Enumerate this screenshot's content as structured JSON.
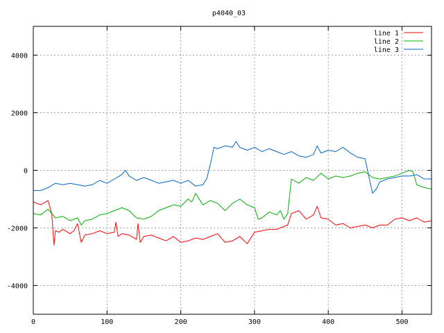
{
  "chart_data": {
    "type": "line",
    "title": "p4040_03",
    "xlabel": "",
    "ylabel": "",
    "xlim": [
      0,
      540
    ],
    "ylim": [
      -5000,
      5000
    ],
    "xticks": [
      0,
      100,
      200,
      300,
      400,
      500
    ],
    "yticks": [
      -4000,
      -2000,
      0,
      2000,
      4000
    ],
    "grid": true,
    "legend_position": "top-right",
    "series": [
      {
        "name": "line 1",
        "color": "#ff0000",
        "x": [
          0,
          10,
          20,
          25,
          28,
          30,
          35,
          40,
          50,
          55,
          60,
          65,
          70,
          80,
          90,
          100,
          110,
          112,
          115,
          120,
          130,
          140,
          142,
          145,
          150,
          160,
          170,
          180,
          190,
          200,
          210,
          220,
          230,
          240,
          250,
          260,
          270,
          280,
          290,
          300,
          310,
          320,
          330,
          340,
          345,
          350,
          360,
          370,
          380,
          385,
          390,
          400,
          410,
          420,
          430,
          440,
          450,
          460,
          470,
          480,
          490,
          500,
          510,
          520,
          530,
          540
        ],
        "y": [
          -1100,
          -1200,
          -1050,
          -1500,
          -2600,
          -2100,
          -2150,
          -2050,
          -2200,
          -2100,
          -1850,
          -2500,
          -2250,
          -2200,
          -2100,
          -2200,
          -2150,
          -1800,
          -2300,
          -2200,
          -2250,
          -2400,
          -1850,
          -2500,
          -2300,
          -2250,
          -2350,
          -2450,
          -2300,
          -2500,
          -2450,
          -2350,
          -2400,
          -2300,
          -2200,
          -2500,
          -2450,
          -2300,
          -2550,
          -2150,
          -2100,
          -2050,
          -2050,
          -1950,
          -1900,
          -1500,
          -1400,
          -1700,
          -1550,
          -1250,
          -1650,
          -1700,
          -1900,
          -1850,
          -2000,
          -1950,
          -1900,
          -2000,
          -1900,
          -1900,
          -1700,
          -1650,
          -1750,
          -1650,
          -1800,
          -1750
        ]
      },
      {
        "name": "line 2",
        "color": "#00b000",
        "x": [
          0,
          10,
          20,
          30,
          40,
          50,
          60,
          65,
          70,
          80,
          90,
          100,
          110,
          120,
          130,
          140,
          150,
          160,
          170,
          180,
          190,
          200,
          210,
          215,
          220,
          230,
          240,
          250,
          260,
          270,
          280,
          290,
          300,
          305,
          310,
          320,
          330,
          335,
          340,
          345,
          350,
          360,
          370,
          380,
          390,
          400,
          410,
          420,
          430,
          440,
          450,
          460,
          470,
          480,
          490,
          500,
          510,
          515,
          520,
          530,
          540
        ],
        "y": [
          -1500,
          -1550,
          -1350,
          -1650,
          -1600,
          -1750,
          -1650,
          -1900,
          -1750,
          -1700,
          -1550,
          -1500,
          -1400,
          -1300,
          -1400,
          -1650,
          -1700,
          -1600,
          -1400,
          -1300,
          -1200,
          -1250,
          -1000,
          -1100,
          -800,
          -1200,
          -1050,
          -1150,
          -1400,
          -1150,
          -1000,
          -1200,
          -1300,
          -1700,
          -1650,
          -1450,
          -1550,
          -1400,
          -1700,
          -1500,
          -300,
          -450,
          -250,
          -350,
          -100,
          -300,
          -200,
          -250,
          -200,
          -100,
          -50,
          -250,
          -300,
          -250,
          -200,
          -100,
          0,
          -50,
          -500,
          -600,
          -650
        ]
      },
      {
        "name": "line 3",
        "color": "#0066cc",
        "x": [
          0,
          10,
          20,
          30,
          40,
          50,
          60,
          70,
          80,
          90,
          100,
          110,
          120,
          125,
          130,
          140,
          150,
          160,
          170,
          180,
          190,
          200,
          210,
          220,
          230,
          235,
          240,
          245,
          250,
          260,
          270,
          275,
          280,
          290,
          300,
          310,
          320,
          330,
          340,
          350,
          360,
          370,
          380,
          385,
          390,
          400,
          410,
          420,
          430,
          440,
          450,
          455,
          460,
          465,
          470,
          480,
          490,
          500,
          510,
          520,
          530,
          540
        ],
        "y": [
          -700,
          -700,
          -600,
          -450,
          -500,
          -450,
          -500,
          -550,
          -500,
          -350,
          -450,
          -300,
          -150,
          0,
          -200,
          -350,
          -250,
          -350,
          -450,
          -400,
          -350,
          -450,
          -350,
          -550,
          -500,
          -300,
          200,
          800,
          750,
          850,
          800,
          1000,
          800,
          700,
          800,
          650,
          750,
          650,
          550,
          650,
          500,
          450,
          550,
          850,
          600,
          700,
          650,
          800,
          600,
          450,
          400,
          -200,
          -800,
          -650,
          -400,
          -300,
          -250,
          -200,
          -200,
          -150,
          -300,
          -300
        ]
      }
    ]
  }
}
